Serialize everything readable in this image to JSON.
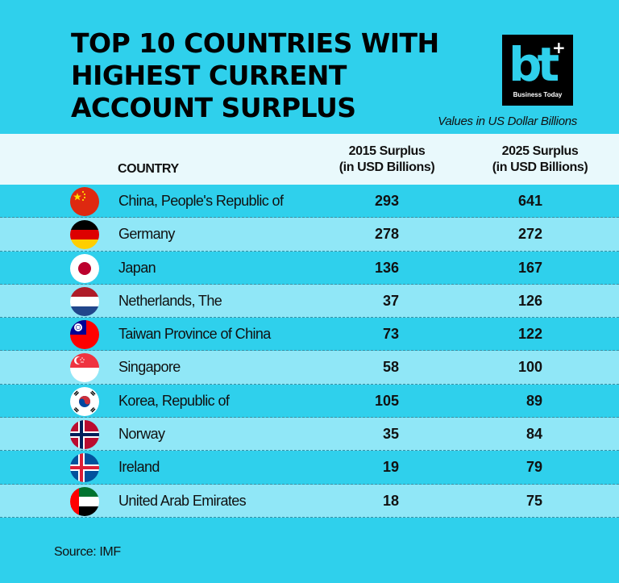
{
  "title_lines": [
    "TOP 10 COUNTRIES WITH",
    "HIGHEST CURRENT",
    "ACCOUNT SURPLUS"
  ],
  "logo": {
    "mark": "bt",
    "brand": "Business Today"
  },
  "subtitle": "Values in US Dollar Billions",
  "source": "Source: IMF",
  "colors": {
    "background": "#2fd0ec",
    "row_alt": "#90e7f7",
    "header": "#e9f9fc"
  },
  "chart_data": {
    "type": "table",
    "columns": {
      "country": "COUNTRY",
      "v2015": [
        "2015 Surplus",
        "(in USD Billions)"
      ],
      "v2025": [
        "2025 Surplus",
        "(in USD Billions)"
      ]
    },
    "rows": [
      {
        "country": "China, People's Republic of",
        "flag": "china-flag-icon",
        "v2015": 293,
        "v2025": 641
      },
      {
        "country": "Germany",
        "flag": "germany-flag-icon",
        "v2015": 278,
        "v2025": 272
      },
      {
        "country": "Japan",
        "flag": "japan-flag-icon",
        "v2015": 136,
        "v2025": 167
      },
      {
        "country": "Netherlands, The",
        "flag": "netherlands-flag-icon",
        "v2015": 37,
        "v2025": 126
      },
      {
        "country": "Taiwan Province of China",
        "flag": "taiwan-flag-icon",
        "v2015": 73,
        "v2025": 122
      },
      {
        "country": "Singapore",
        "flag": "singapore-flag-icon",
        "v2015": 58,
        "v2025": 100
      },
      {
        "country": "Korea, Republic of",
        "flag": "korea-flag-icon",
        "v2015": 105,
        "v2025": 89
      },
      {
        "country": "Norway",
        "flag": "norway-flag-icon",
        "v2015": 35,
        "v2025": 84
      },
      {
        "country": "Ireland",
        "flag": "ireland-flag-icon",
        "v2015": 19,
        "v2025": 79
      },
      {
        "country": "United Arab Emirates",
        "flag": "uae-flag-icon",
        "v2015": 18,
        "v2025": 75
      }
    ]
  }
}
